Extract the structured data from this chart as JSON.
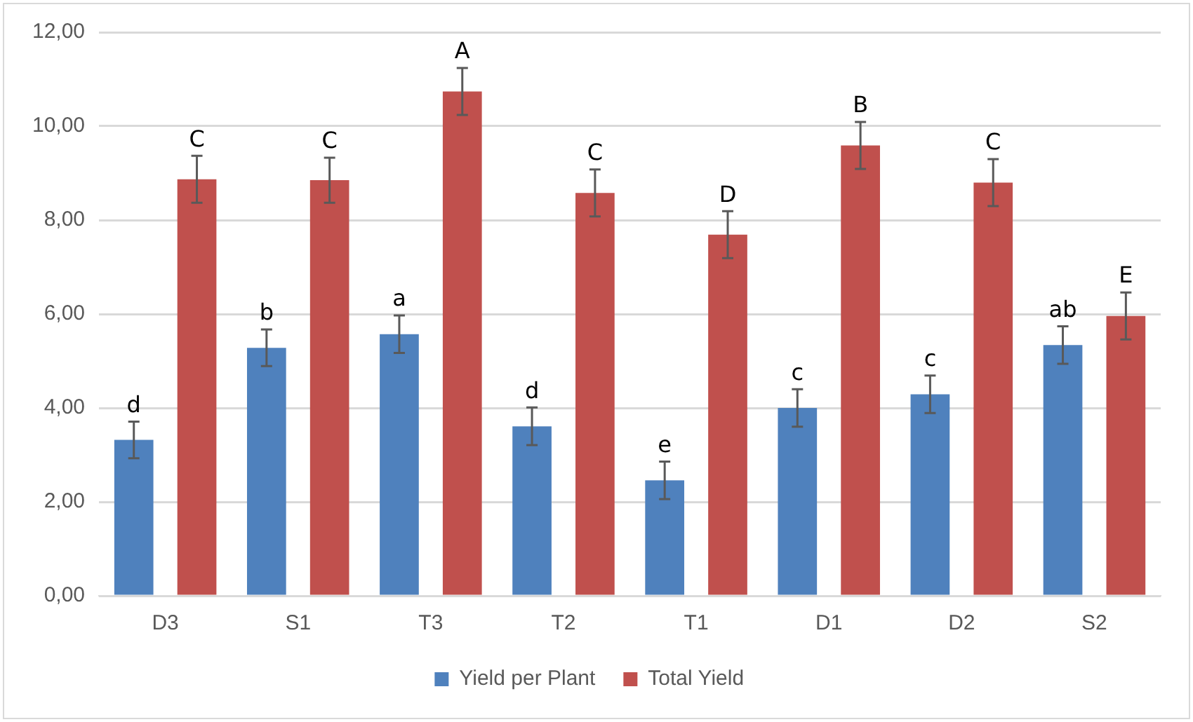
{
  "chart_data": {
    "type": "bar",
    "categories": [
      "D3",
      "S1",
      "T3",
      "T2",
      "T1",
      "D1",
      "D2",
      "S2"
    ],
    "series": [
      {
        "name": "Yield per Plant",
        "color": "#4f81bd",
        "values": [
          3.32,
          5.28,
          5.57,
          3.61,
          2.46,
          4.0,
          4.29,
          5.34
        ],
        "errors": [
          0.39,
          0.39,
          0.4,
          0.4,
          0.4,
          0.4,
          0.4,
          0.4
        ],
        "value_labels": [
          "d",
          "b",
          "a",
          "d",
          "e",
          "c",
          "c",
          "ab"
        ]
      },
      {
        "name": "Total Yield",
        "color": "#c0504d",
        "values": [
          8.87,
          8.85,
          10.74,
          8.58,
          7.69,
          9.59,
          8.8,
          5.96
        ],
        "errors": [
          0.5,
          0.48,
          0.5,
          0.5,
          0.5,
          0.5,
          0.5,
          0.5
        ],
        "value_labels": [
          "C",
          "C",
          "A",
          "C",
          "D",
          "B",
          "C",
          "E"
        ]
      }
    ],
    "ylim": [
      0,
      12
    ],
    "yticks": [
      {
        "value": 0,
        "label": "0,00"
      },
      {
        "value": 2,
        "label": "2,00"
      },
      {
        "value": 4,
        "label": "4,00"
      },
      {
        "value": 6,
        "label": "6,00"
      },
      {
        "value": 8,
        "label": "8,00"
      },
      {
        "value": 10,
        "label": "10,00"
      },
      {
        "value": 12,
        "label": "12,00"
      }
    ],
    "grid": "y",
    "legend": "bottom"
  }
}
